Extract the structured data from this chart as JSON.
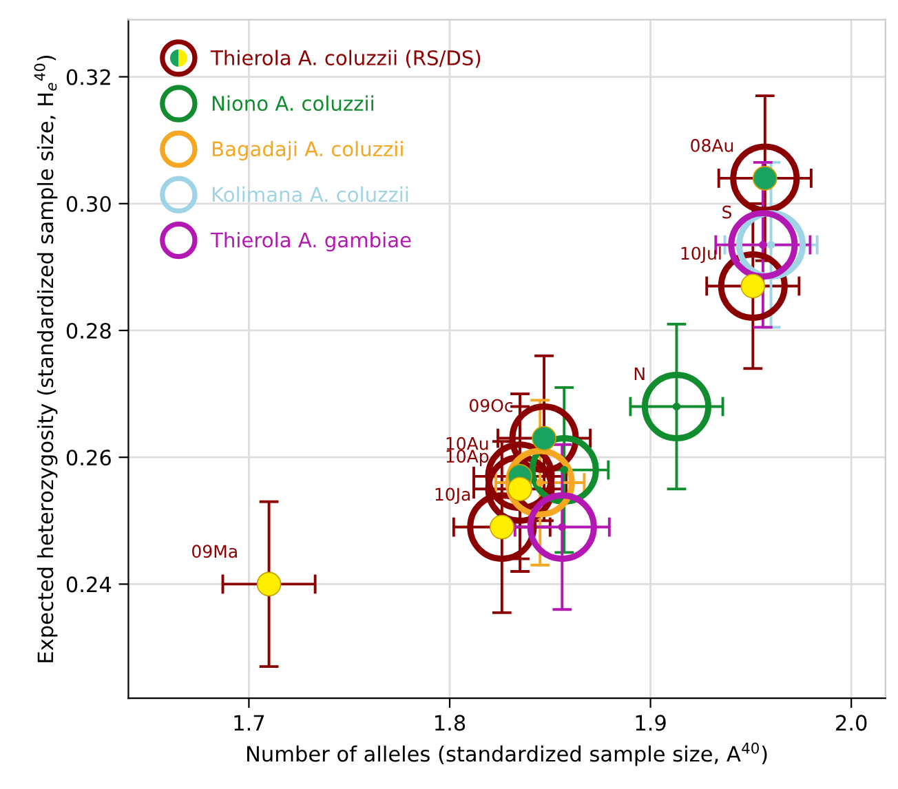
{
  "chart_data": {
    "type": "scatter",
    "marker": "circle",
    "xlabel": "Number of alleles (standardized sample size, A$^{40}$)",
    "ylabel": "Expected heterozygosity (standardized sample size, H$_{e}$$^{40}$)",
    "xlim": [
      1.64,
      2.017
    ],
    "ylim": [
      0.222,
      0.329
    ],
    "xticks": [
      {
        "value": 1.7,
        "label": "1.7"
      },
      {
        "value": 1.8,
        "label": "1.8"
      },
      {
        "value": 1.9,
        "label": "1.9"
      },
      {
        "value": 2.0,
        "label": "2.0"
      }
    ],
    "yticks": [
      {
        "value": 0.24,
        "label": "0.24"
      },
      {
        "value": 0.26,
        "label": "0.26"
      },
      {
        "value": 0.28,
        "label": "0.28"
      },
      {
        "value": 0.3,
        "label": "0.30"
      },
      {
        "value": 0.32,
        "label": "0.32"
      }
    ],
    "grid": true,
    "legend": "top left",
    "series": [
      {
        "name": "Thierola A. coluzzii (RS/DS)",
        "color": "#8b0000",
        "x": [
          1.71,
          1.957,
          1.951,
          1.847,
          1.835,
          1.835,
          1.826
        ],
        "values": [
          0.24,
          0.304,
          0.287,
          0.263,
          0.257,
          0.255,
          0.249
        ],
        "colors": [
          "#ffee00",
          "#1aa260",
          "#ffee00",
          "#1aa260",
          "#1aa260",
          "#ffee00",
          "#ffee00"
        ],
        "errors": [
          0.013,
          0.013,
          0.013,
          0.013,
          0.013,
          0.013,
          0.0135
        ],
        "xerrors": [
          0.023,
          0.023,
          0.023,
          0.023,
          0.023,
          0.023,
          0.024
        ]
      },
      {
        "name": "Niono A. coluzzii",
        "color": "#118c2e",
        "x": [
          1.913,
          1.857
        ],
        "values": [
          0.268,
          0.258
        ],
        "errors": [
          0.013,
          0.013
        ],
        "xerrors": [
          0.023,
          0.022
        ]
      },
      {
        "name": "Bagadaji A. coluzzii",
        "color": "#f5a623",
        "x": [
          1.845
        ],
        "values": [
          0.256
        ],
        "errors": [
          0.013
        ],
        "xerrors": [
          0.022
        ]
      },
      {
        "name": "Kolimana A. coluzzii",
        "color": "#9fd3e6",
        "x": [
          1.96
        ],
        "values": [
          0.2935
        ],
        "errors": [
          0.013
        ],
        "xerrors": [
          0.023
        ]
      },
      {
        "name": "Thierola A. gambiae",
        "color": "#b318b3",
        "x": [
          1.856,
          1.956
        ],
        "values": [
          0.249,
          0.2935
        ],
        "errors": [
          0.013,
          0.013
        ],
        "xerrors": [
          0.0235,
          0.0235
        ]
      }
    ],
    "annotations": [
      {
        "text": "09Ma",
        "x": 1.71,
        "y": 0.24
      },
      {
        "text": "08Au",
        "x": 1.957,
        "y": 0.304
      },
      {
        "text": "10Jul",
        "x": 1.951,
        "y": 0.287
      },
      {
        "text": "09Oc",
        "x": 1.847,
        "y": 0.263
      },
      {
        "text": "10Au",
        "x": 1.835,
        "y": 0.257
      },
      {
        "text": "10Ap",
        "x": 1.835,
        "y": 0.255
      },
      {
        "text": "10Ja",
        "x": 1.826,
        "y": 0.249
      },
      {
        "text": "N",
        "x": 1.913,
        "y": 0.268
      },
      {
        "text": "S",
        "x": 1.956,
        "y": 0.2935
      }
    ]
  }
}
